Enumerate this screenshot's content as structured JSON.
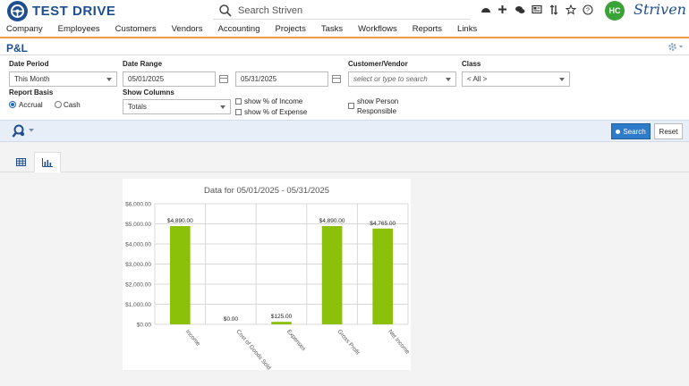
{
  "header": {
    "logo_text": "TEST DRIVE",
    "search_placeholder": "Search Striven",
    "avatar_initials": "HC",
    "brand": "Striven",
    "icons": [
      "dashboard-icon",
      "plus-icon",
      "chat-icon",
      "news-icon",
      "sort-icon",
      "star-icon",
      "help-icon"
    ]
  },
  "nav": [
    "Company",
    "Employees",
    "Customers",
    "Vendors",
    "Accounting",
    "Projects",
    "Tasks",
    "Workflows",
    "Reports",
    "Links"
  ],
  "page": {
    "title": "P&L"
  },
  "filters": {
    "date_period_label": "Date Period",
    "date_period_value": "This Month",
    "date_range_label": "Date Range",
    "date_from": "05/01/2025",
    "date_to": "05/31/2025",
    "customer_vendor_label": "Customer/Vendor",
    "customer_vendor_placeholder": "select or type to search",
    "class_label": "Class",
    "class_value": "< All >",
    "report_basis_label": "Report Basis",
    "basis_accrual": "Accrual",
    "basis_cash": "Cash",
    "show_columns_label": "Show Columns",
    "show_columns_value": "Totals",
    "show_pct_income": "show % of Income",
    "show_pct_expense": "show % of Expense",
    "show_person_line1": "show Person",
    "show_person_line2": "Responsible"
  },
  "actions": {
    "search": "Search",
    "reset": "Reset"
  },
  "chart_data": {
    "type": "bar",
    "title": "Data for 05/01/2025 - 05/31/2025",
    "categories": [
      "Income",
      "Cost of Goods Sold",
      "Expenses",
      "Gross Profit",
      "Net Income"
    ],
    "values": [
      4890,
      0,
      125,
      4890,
      4765
    ],
    "data_labels": [
      "$4,890.00",
      "$0.00",
      "$125.00",
      "$4,890.00",
      "$4,765.00"
    ],
    "y_ticks": [
      "$0.00",
      "$1,000.00",
      "$2,000.00",
      "$3,000.00",
      "$4,000.00",
      "$5,000.00",
      "$6,000.00"
    ],
    "ylim": [
      0,
      6000
    ],
    "bar_color": "#8cc10a",
    "grid": true
  }
}
